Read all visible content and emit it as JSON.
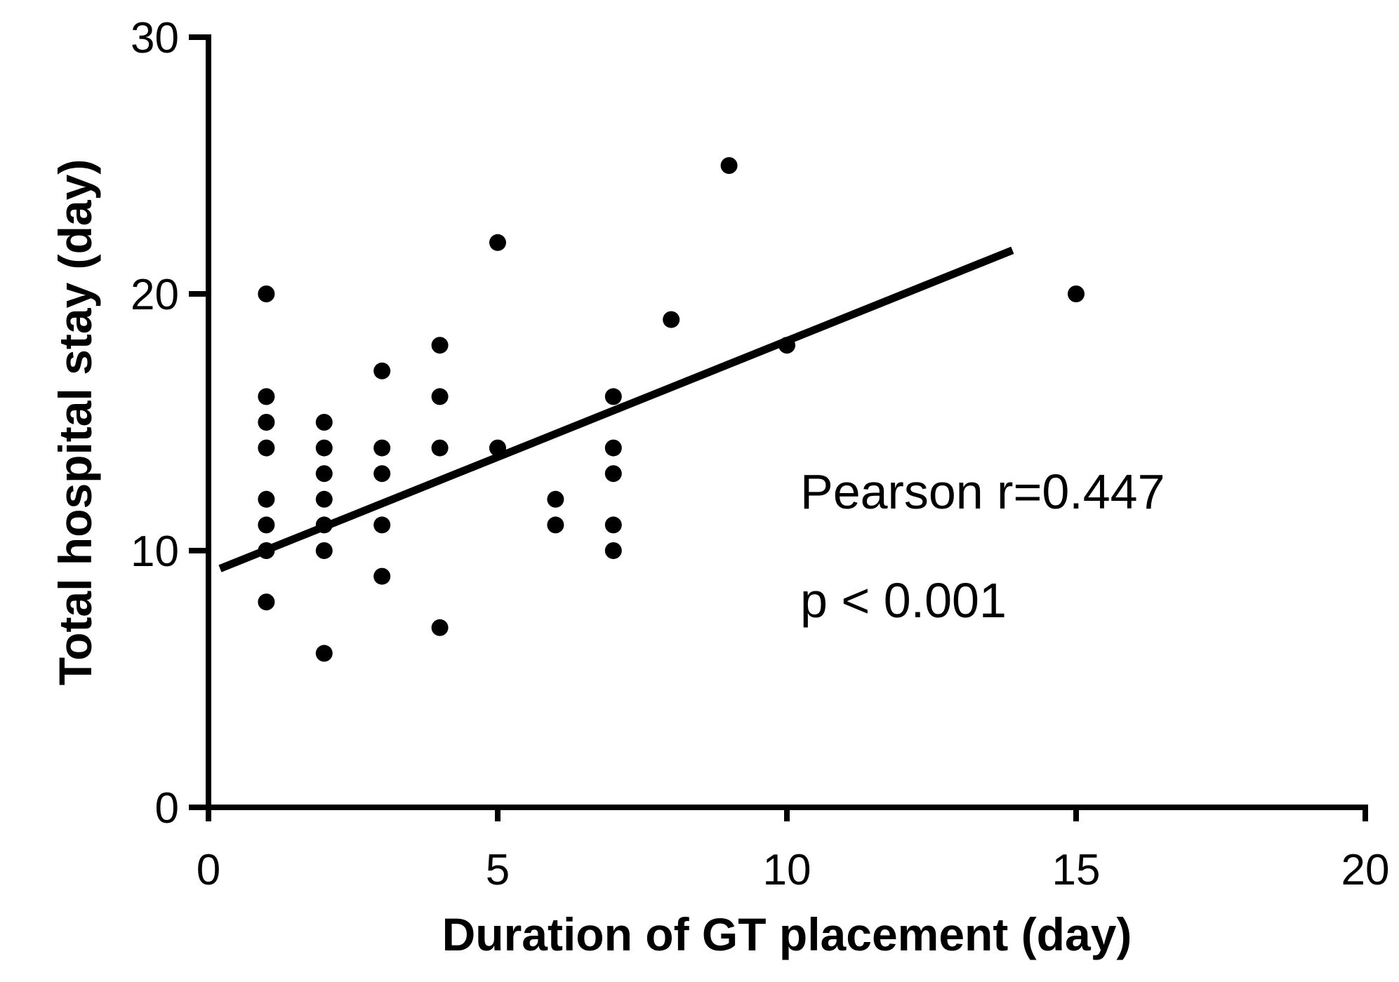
{
  "chart_data": {
    "type": "scatter",
    "title": "",
    "xlabel": "Duration of GT placement (day)",
    "ylabel": "Total hospital stay (day)",
    "xlim": [
      0,
      20
    ],
    "ylim": [
      0,
      30
    ],
    "x_ticks": [
      0,
      5,
      10,
      15,
      20
    ],
    "y_ticks": [
      0,
      10,
      20,
      30
    ],
    "grid": false,
    "colors": {
      "points": "#000000",
      "line": "#000000",
      "axes": "#000000",
      "background": "#ffffff"
    },
    "series": [
      {
        "name": "patients",
        "points": [
          {
            "x": 1,
            "y": 20
          },
          {
            "x": 1,
            "y": 16
          },
          {
            "x": 1,
            "y": 15
          },
          {
            "x": 1,
            "y": 14
          },
          {
            "x": 1,
            "y": 12
          },
          {
            "x": 1,
            "y": 11
          },
          {
            "x": 1,
            "y": 10
          },
          {
            "x": 1,
            "y": 8
          },
          {
            "x": 2,
            "y": 15
          },
          {
            "x": 2,
            "y": 14
          },
          {
            "x": 2,
            "y": 13
          },
          {
            "x": 2,
            "y": 12
          },
          {
            "x": 2,
            "y": 11
          },
          {
            "x": 2,
            "y": 10
          },
          {
            "x": 2,
            "y": 6
          },
          {
            "x": 3,
            "y": 17
          },
          {
            "x": 3,
            "y": 14
          },
          {
            "x": 3,
            "y": 13
          },
          {
            "x": 3,
            "y": 11
          },
          {
            "x": 3,
            "y": 9
          },
          {
            "x": 4,
            "y": 18
          },
          {
            "x": 4,
            "y": 16
          },
          {
            "x": 4,
            "y": 14
          },
          {
            "x": 4,
            "y": 7
          },
          {
            "x": 5,
            "y": 22
          },
          {
            "x": 5,
            "y": 14
          },
          {
            "x": 6,
            "y": 12
          },
          {
            "x": 6,
            "y": 11
          },
          {
            "x": 7,
            "y": 16
          },
          {
            "x": 7,
            "y": 14
          },
          {
            "x": 7,
            "y": 13
          },
          {
            "x": 7,
            "y": 11
          },
          {
            "x": 7,
            "y": 10
          },
          {
            "x": 8,
            "y": 19
          },
          {
            "x": 9,
            "y": 25
          },
          {
            "x": 10,
            "y": 18
          },
          {
            "x": 15,
            "y": 20
          }
        ]
      }
    ],
    "regression_line": {
      "x": [
        0.2,
        13.9
      ],
      "y": [
        9.3,
        21.7
      ]
    },
    "annotations": [
      "Pearson r=0.447",
      "p < 0.001"
    ]
  }
}
